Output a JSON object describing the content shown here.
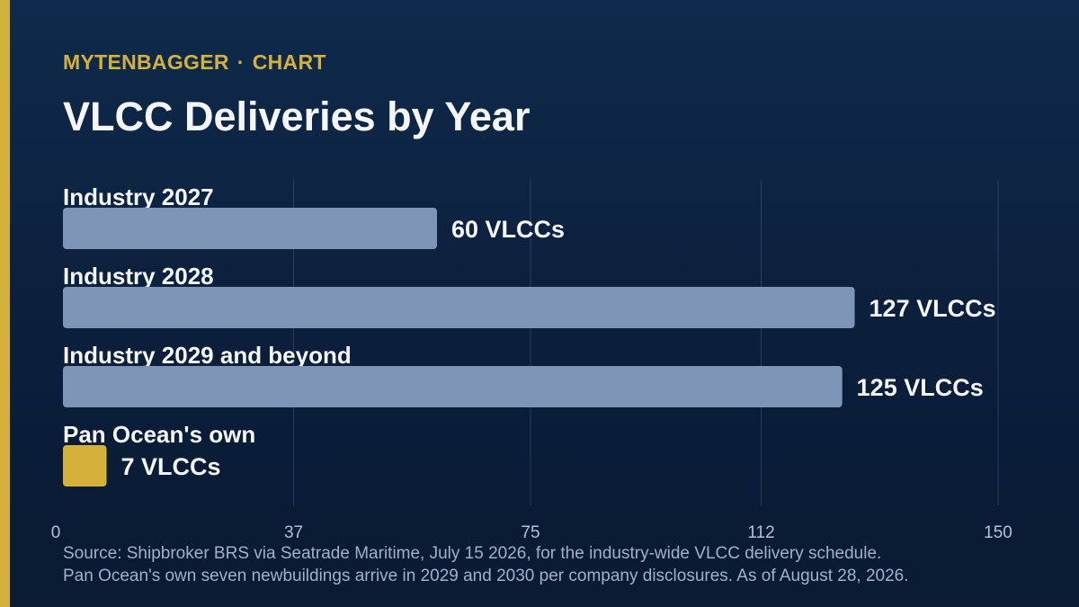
{
  "header": {
    "brand": "MYTENBAGGER",
    "separator": "·",
    "section": "CHART",
    "title": "VLCC Deliveries by Year"
  },
  "chart_data": {
    "type": "bar",
    "orientation": "horizontal",
    "categories": [
      "Industry 2027",
      "Industry 2028",
      "Industry 2029 and beyond",
      "Pan Ocean's own"
    ],
    "values": [
      60,
      127,
      125,
      7
    ],
    "value_labels": [
      "60 VLCCs",
      "127 VLCCs",
      "125 VLCCs",
      "7 VLCCs"
    ],
    "bar_colors": [
      "#7f95b8",
      "#7f95b8",
      "#7f95b8",
      "#d4b13a"
    ],
    "xlim": [
      0,
      150
    ],
    "xticks": [
      0,
      37,
      75,
      112,
      150
    ],
    "grid": true,
    "legend": "none"
  },
  "footer": {
    "source_line1": "Source: Shipbroker BRS via Seatrade Maritime, July 15 2026, for the industry-wide VLCC delivery schedule.",
    "source_line2": "Pan Ocean's own seven newbuildings arrive in 2029 and 2030 per company disclosures. As of August 28, 2026."
  },
  "colors": {
    "accent": "#d4b13a",
    "bar": "#7f95b8",
    "background": "#0b1f3b",
    "text": "#f4f6fa",
    "muted": "#9fb2cc"
  }
}
